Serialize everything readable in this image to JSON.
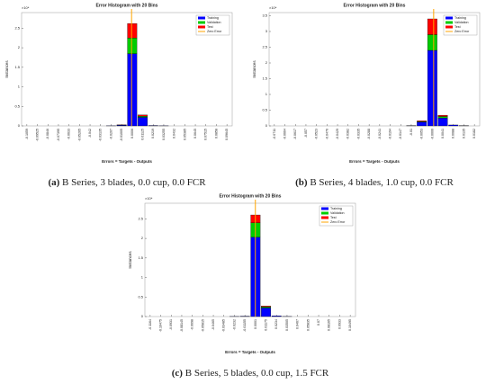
{
  "chart_data": [
    {
      "type": "bar",
      "title": "Error Histogram with 20 Bins",
      "x_label": "Errors = Targets - Outputs",
      "y_label": "Instances",
      "y_multiplier": "×10⁴",
      "caption_tag": "(a)",
      "caption": "B Series, 3 blades, 0.0 cup, 0.0 FCR",
      "x": [
        -0.1059,
        -0.09525,
        -0.0846,
        -0.07395,
        -0.0633,
        -0.05265,
        -0.042,
        -0.03135,
        -0.0207,
        -0.01005,
        0.0006,
        0.01125,
        0.0219,
        0.03255,
        0.0432,
        0.05385,
        0.0645,
        0.07515,
        0.0858,
        0.09645
      ],
      "xlim": [
        -0.111225,
        0.101775
      ],
      "ylim": [
        0,
        2.9
      ],
      "yticks": [
        0,
        0.5,
        1,
        1.5,
        2,
        2.5
      ],
      "series": [
        {
          "name": "Training",
          "color": "#0000ff",
          "values": [
            0,
            0,
            0,
            0,
            0,
            0,
            0,
            0,
            0.003,
            0.02,
            1.85,
            0.22,
            0.01,
            0.003,
            0,
            0,
            0,
            0,
            0,
            0
          ]
        },
        {
          "name": "Validation",
          "color": "#00cc00",
          "values": [
            0,
            0,
            0,
            0,
            0,
            0,
            0,
            0,
            0,
            0.003,
            0.4,
            0.03,
            0,
            0,
            0,
            0,
            0,
            0,
            0,
            0
          ]
        },
        {
          "name": "Test",
          "color": "#ff0000",
          "values": [
            0,
            0,
            0,
            0,
            0,
            0,
            0,
            0,
            0,
            0.003,
            0.37,
            0.03,
            0,
            0,
            0,
            0,
            0,
            0,
            0,
            0
          ]
        }
      ],
      "reference_line": {
        "name": "Zero Error",
        "color": "#ffa500",
        "x": 0
      }
    },
    {
      "type": "bar",
      "title": "Error Histogram with 20 Bins",
      "x_label": "Errors = Targets - Outputs",
      "y_label": "Instances",
      "y_multiplier": "×10⁴",
      "caption_tag": "(b)",
      "caption": "B Series, 4 blades, 1.0 cup, 0.0 FCR",
      "x": [
        -0.0711,
        -0.0664,
        -0.0617,
        -0.057,
        -0.0523,
        -0.0476,
        -0.0429,
        -0.0382,
        -0.0335,
        -0.0288,
        -0.0241,
        -0.0194,
        -0.0147,
        -0.01,
        -0.0053,
        -0.0006,
        0.0041,
        0.0088,
        0.0135,
        0.0182
      ],
      "xlim": [
        -0.07345,
        0.02055
      ],
      "ylim": [
        0,
        3.6
      ],
      "yticks": [
        0,
        0.5,
        1,
        1.5,
        2,
        2.5,
        3,
        3.5
      ],
      "series": [
        {
          "name": "Training",
          "color": "#0000ff",
          "values": [
            0,
            0,
            0,
            0,
            0,
            0,
            0,
            0,
            0,
            0,
            0,
            0,
            0,
            0.005,
            0.12,
            2.4,
            0.25,
            0.03,
            0.005,
            0
          ]
        },
        {
          "name": "Validation",
          "color": "#00cc00",
          "values": [
            0,
            0,
            0,
            0,
            0,
            0,
            0,
            0,
            0,
            0,
            0,
            0,
            0,
            0,
            0.02,
            0.5,
            0.05,
            0,
            0,
            0
          ]
        },
        {
          "name": "Test",
          "color": "#ff0000",
          "values": [
            0,
            0,
            0,
            0,
            0,
            0,
            0,
            0,
            0,
            0,
            0,
            0,
            0,
            0,
            0.02,
            0.5,
            0.04,
            0,
            0,
            0
          ]
        }
      ],
      "reference_line": {
        "name": "Zero Error",
        "color": "#ffa500",
        "x": 0
      }
    },
    {
      "type": "bar",
      "title": "Error Histogram with 20 Bins",
      "x_label": "Errors = Targets - Outputs",
      "y_label": "Instances",
      "y_multiplier": "×10⁴",
      "caption_tag": "(c)",
      "caption": "B Series, 5 blades, 0.0 cup, 1.5 FCR",
      "x": [
        -0.1164,
        -0.10475,
        -0.0931,
        -0.08145,
        -0.0698,
        -0.05815,
        -0.0465,
        -0.03485,
        -0.0232,
        -0.01155,
        0.0001,
        0.01175,
        0.0234,
        0.03505,
        0.0467,
        0.05835,
        0.07,
        0.08165,
        0.0933,
        0.10495
      ],
      "xlim": [
        -0.122225,
        0.110775
      ],
      "ylim": [
        0,
        2.9
      ],
      "yticks": [
        0,
        0.5,
        1,
        1.5,
        2,
        2.5
      ],
      "series": [
        {
          "name": "Training",
          "color": "#0000ff",
          "values": [
            0,
            0,
            0,
            0,
            0,
            0,
            0,
            0,
            0.003,
            0.01,
            2.03,
            0.22,
            0.02,
            0.003,
            0,
            0,
            0,
            0,
            0,
            0
          ]
        },
        {
          "name": "Validation",
          "color": "#00cc00",
          "values": [
            0,
            0,
            0,
            0,
            0,
            0,
            0,
            0,
            0,
            0,
            0.37,
            0.03,
            0,
            0,
            0,
            0,
            0,
            0,
            0,
            0
          ]
        },
        {
          "name": "Test",
          "color": "#ff0000",
          "values": [
            0,
            0,
            0,
            0,
            0,
            0,
            0,
            0,
            0,
            0,
            0.2,
            0.02,
            0,
            0,
            0,
            0,
            0,
            0,
            0,
            0
          ]
        }
      ],
      "reference_line": {
        "name": "Zero Error",
        "color": "#ffa500",
        "x": 0
      }
    }
  ]
}
